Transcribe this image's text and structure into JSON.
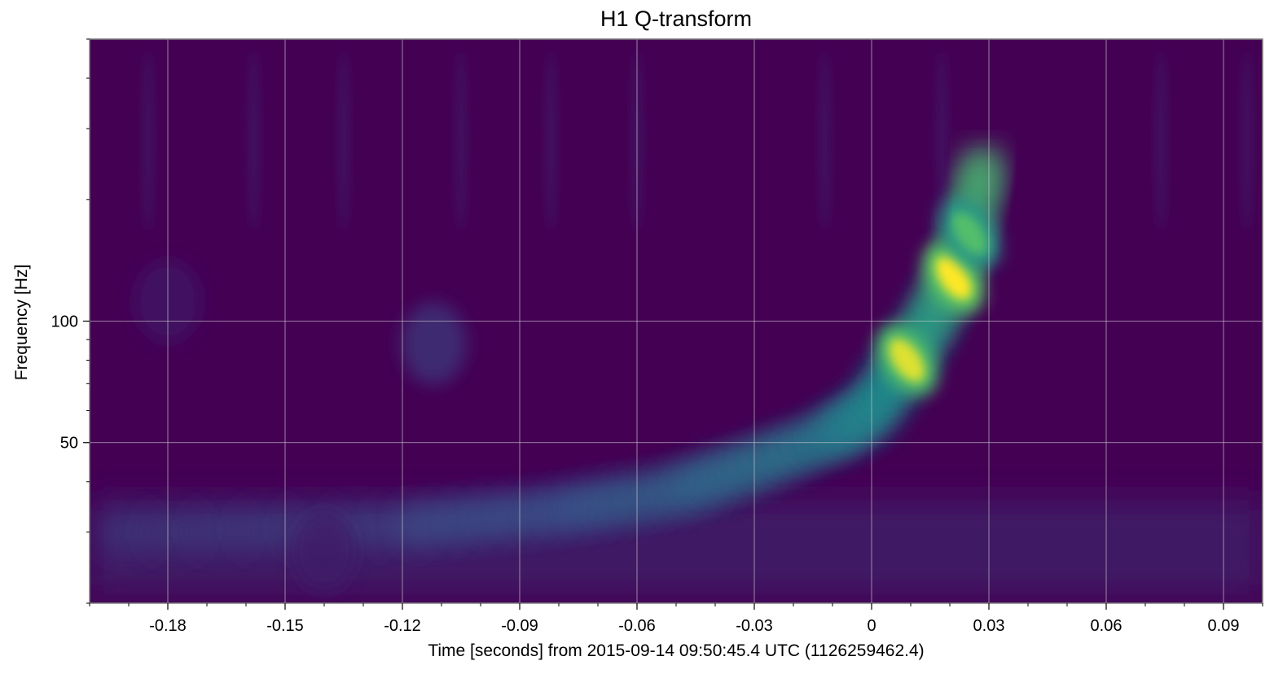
{
  "chart_data": {
    "type": "heatmap",
    "title": "H1 Q-transform",
    "xlabel": "Time [seconds] from 2015-09-14 09:50:45.4 UTC (1126259462.4)",
    "ylabel": "Frequency [Hz]",
    "xlim": [
      -0.2,
      0.1
    ],
    "ylim": [
      20,
      500
    ],
    "yscale": "log",
    "xticks": [
      -0.18,
      -0.15,
      -0.12,
      -0.09,
      -0.06,
      -0.03,
      0,
      0.03,
      0.06,
      0.09
    ],
    "xtick_labels": [
      "-0.18",
      "-0.15",
      "-0.12",
      "-0.09",
      "-0.06",
      "-0.03",
      "0",
      "0.03",
      "0.06",
      "0.09"
    ],
    "yticks": [
      50,
      100
    ],
    "ytick_labels": [
      "50",
      "100"
    ],
    "grid": true,
    "colormap": "viridis",
    "chirp_track": [
      {
        "t": -0.19,
        "f": 30
      },
      {
        "t": -0.12,
        "f": 31
      },
      {
        "t": -0.08,
        "f": 34
      },
      {
        "t": -0.05,
        "f": 38
      },
      {
        "t": -0.03,
        "f": 44
      },
      {
        "t": -0.01,
        "f": 52
      },
      {
        "t": 0.0,
        "f": 60
      },
      {
        "t": 0.008,
        "f": 78
      },
      {
        "t": 0.015,
        "f": 100
      },
      {
        "t": 0.021,
        "f": 130
      },
      {
        "t": 0.026,
        "f": 190
      },
      {
        "t": 0.029,
        "f": 260
      }
    ],
    "blobs": [
      {
        "t": 0.009,
        "f": 80,
        "energy": 0.95
      },
      {
        "t": 0.021,
        "f": 128,
        "energy": 1.0
      },
      {
        "t": 0.025,
        "f": 165,
        "energy": 0.7
      },
      {
        "t": -0.112,
        "f": 88,
        "energy": 0.22
      },
      {
        "t": -0.18,
        "f": 112,
        "energy": 0.1
      },
      {
        "t": -0.14,
        "f": 27,
        "energy": 0.12
      }
    ]
  },
  "colors": {
    "background": "#440154",
    "dark": "#3b0150",
    "grid": "#cfcfcf",
    "axis": "#808080"
  }
}
